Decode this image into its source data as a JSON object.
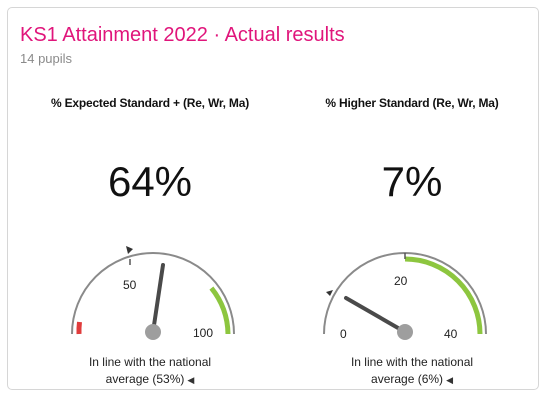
{
  "header": {
    "title": "KS1 Attainment 2022 · Actual results",
    "subtitle": "14 pupils"
  },
  "colors": {
    "accent": "#e0157b",
    "good_band": "#8dc63f",
    "low_band": "#e03c3c",
    "needle": "#4a4a4a",
    "arc": "#888888"
  },
  "gauges": [
    {
      "heading": "% Expected Standard + (Re, Wr, Ma)",
      "value_text": "64%",
      "value": 64,
      "national_average": 53,
      "min": 0,
      "max": 100,
      "ticks": [
        "50",
        "100"
      ],
      "footer_line1": "In line with the national",
      "footer_line2": "average (53%)",
      "footer_icon": "triangle-left-icon"
    },
    {
      "heading": "% Higher Standard (Re, Wr, Ma)",
      "value_text": "7%",
      "value": 7,
      "national_average": 6,
      "min": 0,
      "max": 40,
      "ticks": [
        "0",
        "20",
        "40"
      ],
      "footer_line1": "In line with the national",
      "footer_line2": "average (6%)",
      "footer_icon": "triangle-left-icon"
    }
  ]
}
